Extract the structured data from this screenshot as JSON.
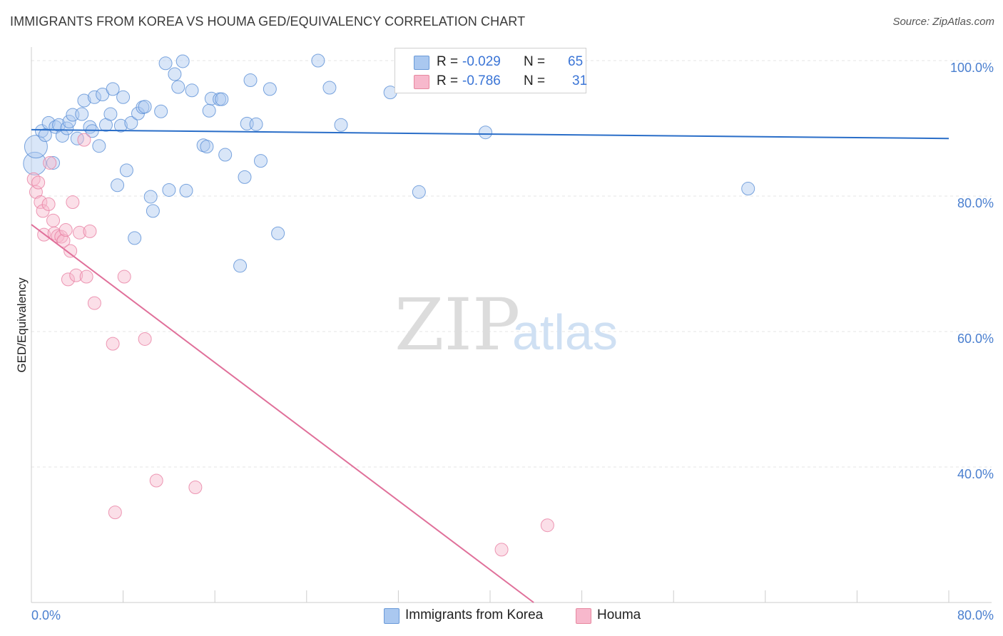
{
  "header": {
    "title": "IMMIGRANTS FROM KOREA VS HOUMA GED/EQUIVALENCY CORRELATION CHART",
    "source": "Source: ZipAtlas.com"
  },
  "watermark": {
    "zip": "ZIP",
    "atlas": "atlas"
  },
  "legend": {
    "rows": [
      {
        "r_label": "R =",
        "r_value": "-0.029",
        "n_label": "N =",
        "n_value": "65",
        "color": "#aac8f0"
      },
      {
        "r_label": "R =",
        "r_value": "-0.786",
        "n_label": "N =",
        "n_value": "31",
        "color": "#f7b8cc"
      }
    ]
  },
  "bottom_legend": [
    {
      "label": "Immigrants from Korea",
      "color": "#aac8f0"
    },
    {
      "label": "Houma",
      "color": "#f7b8cc"
    }
  ],
  "chart_data": {
    "type": "scatter",
    "xlabel": "",
    "ylabel": "GED/Equivalency",
    "xlim": [
      0,
      80
    ],
    "ylim": [
      20,
      102
    ],
    "x_tick_labels": [
      "0.0%",
      "80.0%"
    ],
    "y_ticks": [
      40,
      60,
      80,
      100
    ],
    "y_tick_labels": [
      "40.0%",
      "60.0%",
      "80.0%",
      "100.0%"
    ],
    "grid": true,
    "legend_position": "top-center",
    "series": [
      {
        "name": "Immigrants from Korea",
        "color": "#5a8fd6",
        "fill": "#aac8f0",
        "trend": {
          "x": [
            0,
            80
          ],
          "y": [
            89.8,
            88.5
          ],
          "color": "#2a6ec8"
        },
        "points": [
          [
            0.3,
            84.8
          ],
          [
            0.4,
            87.3
          ],
          [
            0.9,
            89.6
          ],
          [
            1.2,
            89.0
          ],
          [
            1.5,
            90.8
          ],
          [
            1.9,
            84.9
          ],
          [
            2.1,
            90.2
          ],
          [
            2.4,
            90.5
          ],
          [
            2.7,
            88.9
          ],
          [
            3.1,
            90.0
          ],
          [
            3.3,
            91.0
          ],
          [
            3.6,
            92.0
          ],
          [
            4.0,
            88.5
          ],
          [
            4.4,
            92.1
          ],
          [
            4.6,
            94.1
          ],
          [
            5.1,
            90.2
          ],
          [
            5.3,
            89.6
          ],
          [
            5.5,
            94.6
          ],
          [
            5.9,
            87.4
          ],
          [
            6.2,
            95.0
          ],
          [
            6.5,
            90.5
          ],
          [
            6.9,
            92.1
          ],
          [
            7.1,
            95.8
          ],
          [
            7.8,
            90.4
          ],
          [
            8.0,
            94.6
          ],
          [
            8.3,
            83.8
          ],
          [
            7.5,
            81.6
          ],
          [
            8.7,
            90.8
          ],
          [
            9.0,
            73.8
          ],
          [
            9.3,
            92.2
          ],
          [
            9.7,
            93.1
          ],
          [
            9.9,
            93.2
          ],
          [
            10.4,
            79.9
          ],
          [
            10.6,
            77.8
          ],
          [
            11.3,
            92.5
          ],
          [
            11.7,
            99.6
          ],
          [
            12.0,
            80.9
          ],
          [
            12.5,
            98.0
          ],
          [
            12.8,
            96.1
          ],
          [
            13.2,
            99.9
          ],
          [
            13.5,
            80.8
          ],
          [
            14.0,
            95.6
          ],
          [
            15.0,
            87.5
          ],
          [
            15.3,
            87.3
          ],
          [
            15.5,
            92.6
          ],
          [
            15.7,
            94.4
          ],
          [
            16.4,
            94.3
          ],
          [
            16.6,
            94.3
          ],
          [
            16.9,
            86.1
          ],
          [
            18.2,
            69.7
          ],
          [
            18.6,
            82.8
          ],
          [
            18.8,
            90.7
          ],
          [
            19.1,
            97.1
          ],
          [
            19.6,
            90.6
          ],
          [
            20.0,
            85.2
          ],
          [
            20.8,
            95.8
          ],
          [
            21.5,
            74.5
          ],
          [
            25.0,
            100.0
          ],
          [
            26.0,
            96.0
          ],
          [
            27.0,
            90.5
          ],
          [
            31.3,
            95.3
          ],
          [
            33.8,
            80.6
          ],
          [
            39.4,
            100.4
          ],
          [
            39.6,
            89.4
          ],
          [
            62.5,
            81.1
          ]
        ]
      },
      {
        "name": "Houma",
        "color": "#e87fa2",
        "fill": "#f7b8cc",
        "trend": {
          "x": [
            0,
            43.8
          ],
          "y": [
            75.8,
            20
          ],
          "color": "#e0709a"
        },
        "points": [
          [
            0.2,
            82.5
          ],
          [
            0.4,
            80.6
          ],
          [
            0.6,
            82.0
          ],
          [
            0.8,
            79.1
          ],
          [
            1.0,
            77.8
          ],
          [
            1.1,
            74.3
          ],
          [
            1.5,
            78.8
          ],
          [
            1.6,
            84.9
          ],
          [
            1.9,
            76.4
          ],
          [
            2.0,
            74.5
          ],
          [
            2.3,
            74.1
          ],
          [
            2.6,
            74.0
          ],
          [
            2.8,
            73.4
          ],
          [
            3.0,
            75.0
          ],
          [
            3.2,
            67.7
          ],
          [
            3.4,
            71.9
          ],
          [
            3.6,
            79.1
          ],
          [
            3.9,
            68.3
          ],
          [
            4.2,
            74.6
          ],
          [
            4.6,
            88.3
          ],
          [
            4.8,
            68.1
          ],
          [
            5.1,
            74.8
          ],
          [
            5.5,
            64.2
          ],
          [
            7.1,
            58.2
          ],
          [
            7.3,
            33.3
          ],
          [
            8.1,
            68.1
          ],
          [
            9.9,
            58.9
          ],
          [
            10.9,
            38.0
          ],
          [
            14.3,
            37.0
          ],
          [
            41.0,
            27.8
          ],
          [
            45.0,
            31.4
          ]
        ]
      }
    ]
  }
}
